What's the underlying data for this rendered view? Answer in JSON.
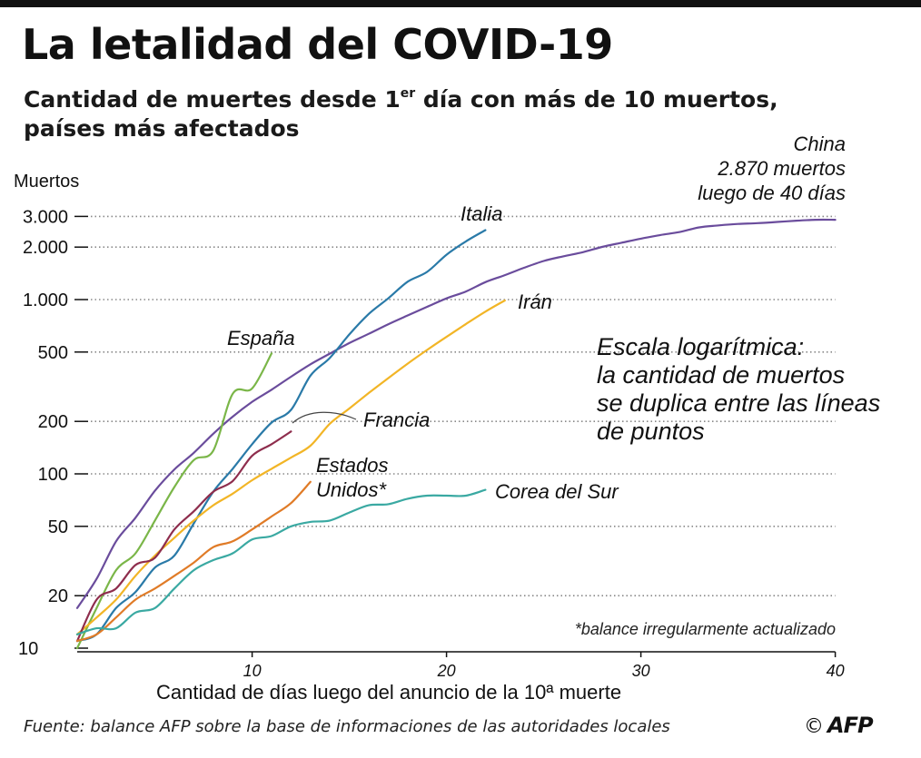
{
  "title": "La letalidad del COVID-19",
  "subtitle_part1": "Cantidad de muertes desde 1",
  "subtitle_sup": "er",
  "subtitle_part2": " día con más de 10 muertos,",
  "subtitle_line2": "países más afectados",
  "source": "Fuente: balance AFP sobre la base de informaciones de las autoridades locales",
  "copyright_symbol": "©",
  "brand": "AFP",
  "annotations": {
    "log_note": [
      "Escala logarítmica:",
      "la cantidad de muertos",
      "se duplica entre las líneas",
      "de puntos"
    ],
    "china_note": [
      "China",
      "2.870 muertos",
      "luego de 40 días"
    ],
    "footnote": "*balance irregularmente actualizado"
  },
  "colors": {
    "china": "#6a4c9c",
    "italia": "#2a7aa8",
    "espana": "#7ab648",
    "iran": "#f2b526",
    "francia": "#8e2d4d",
    "estados_unidos": "#e07b27",
    "corea": "#3aa9a2",
    "grid": "#888888",
    "axis": "#111111"
  },
  "chart_data": {
    "type": "line",
    "title": "La letalidad del COVID-19",
    "xlabel": "Cantidad de días luego del anuncio de la 10ª muerte",
    "ylabel": "Muertos",
    "y_scale": "log",
    "xlim": [
      1,
      40
    ],
    "ylim": [
      10,
      3000
    ],
    "x_ticks": [
      10,
      20,
      30,
      40
    ],
    "y_ticks": [
      {
        "value": 10,
        "label": "10"
      },
      {
        "value": 20,
        "label": "20"
      },
      {
        "value": 50,
        "label": "50"
      },
      {
        "value": 100,
        "label": "100"
      },
      {
        "value": 200,
        "label": "200"
      },
      {
        "value": 500,
        "label": "500"
      },
      {
        "value": 1000,
        "label": "1.000"
      },
      {
        "value": 2000,
        "label": "2.000"
      },
      {
        "value": 3000,
        "label": "3.000"
      }
    ],
    "gridlines": "dotted",
    "series": [
      {
        "key": "china",
        "name": "China",
        "x": [
          1,
          2,
          3,
          4,
          5,
          6,
          7,
          8,
          9,
          10,
          11,
          12,
          13,
          14,
          15,
          16,
          17,
          18,
          19,
          20,
          21,
          22,
          23,
          24,
          25,
          26,
          27,
          28,
          29,
          30,
          31,
          32,
          33,
          34,
          35,
          36,
          37,
          38,
          39,
          40
        ],
        "y": [
          17,
          25,
          41,
          56,
          80,
          106,
          132,
          170,
          213,
          259,
          304,
          361,
          425,
          490,
          563,
          636,
          722,
          811,
          908,
          1016,
          1113,
          1259,
          1380,
          1523,
          1665,
          1770,
          1868,
          2004,
          2118,
          2236,
          2345,
          2442,
          2595,
          2663,
          2715,
          2744,
          2788,
          2835,
          2870,
          2870
        ]
      },
      {
        "key": "italia",
        "name": "Italia",
        "x": [
          1,
          2,
          3,
          4,
          5,
          6,
          7,
          8,
          9,
          10,
          11,
          12,
          13,
          14,
          15,
          16,
          17,
          18,
          19,
          20,
          21,
          22
        ],
        "y": [
          11,
          12,
          17,
          21,
          29,
          34,
          52,
          79,
          107,
          148,
          197,
          233,
          366,
          463,
          631,
          827,
          1016,
          1266,
          1441,
          1809,
          2158,
          2503
        ]
      },
      {
        "key": "espana",
        "name": "España",
        "x": [
          1,
          2,
          3,
          4,
          5,
          6,
          7,
          8,
          9,
          10,
          11
        ],
        "y": [
          10,
          17,
          28,
          35,
          54,
          84,
          120,
          136,
          288,
          309,
          491
        ]
      },
      {
        "key": "iran",
        "name": "Irán",
        "x": [
          1,
          2,
          3,
          4,
          5,
          6,
          7,
          8,
          9,
          10,
          11,
          12,
          13,
          14,
          15,
          16,
          17,
          18,
          19,
          20,
          21,
          22,
          23
        ],
        "y": [
          12,
          15,
          19,
          26,
          34,
          43,
          54,
          66,
          77,
          92,
          107,
          124,
          145,
          194,
          237,
          291,
          354,
          429,
          514,
          611,
          724,
          853,
          988
        ]
      },
      {
        "key": "francia",
        "name": "Francia",
        "x": [
          1,
          2,
          3,
          4,
          5,
          6,
          7,
          8,
          9,
          10,
          11,
          12
        ],
        "y": [
          11,
          19,
          22,
          30,
          33,
          48,
          61,
          79,
          91,
          127,
          148,
          175
        ]
      },
      {
        "key": "estados_unidos",
        "name": "Estados Unidos*",
        "x": [
          1,
          2,
          3,
          4,
          5,
          6,
          7,
          8,
          9,
          10,
          11,
          12,
          13
        ],
        "y": [
          11,
          12,
          15,
          19,
          22,
          26,
          31,
          38,
          41,
          48,
          57,
          68,
          90
        ]
      },
      {
        "key": "corea",
        "name": "Corea del Sur",
        "x": [
          1,
          2,
          3,
          4,
          5,
          6,
          7,
          8,
          9,
          10,
          11,
          12,
          13,
          14,
          15,
          16,
          17,
          18,
          19,
          20,
          21,
          22
        ],
        "y": [
          12,
          13,
          13,
          16,
          17,
          22,
          28,
          32,
          35,
          42,
          44,
          50,
          53,
          54,
          60,
          66,
          67,
          72,
          75,
          75,
          75,
          81
        ]
      }
    ]
  }
}
